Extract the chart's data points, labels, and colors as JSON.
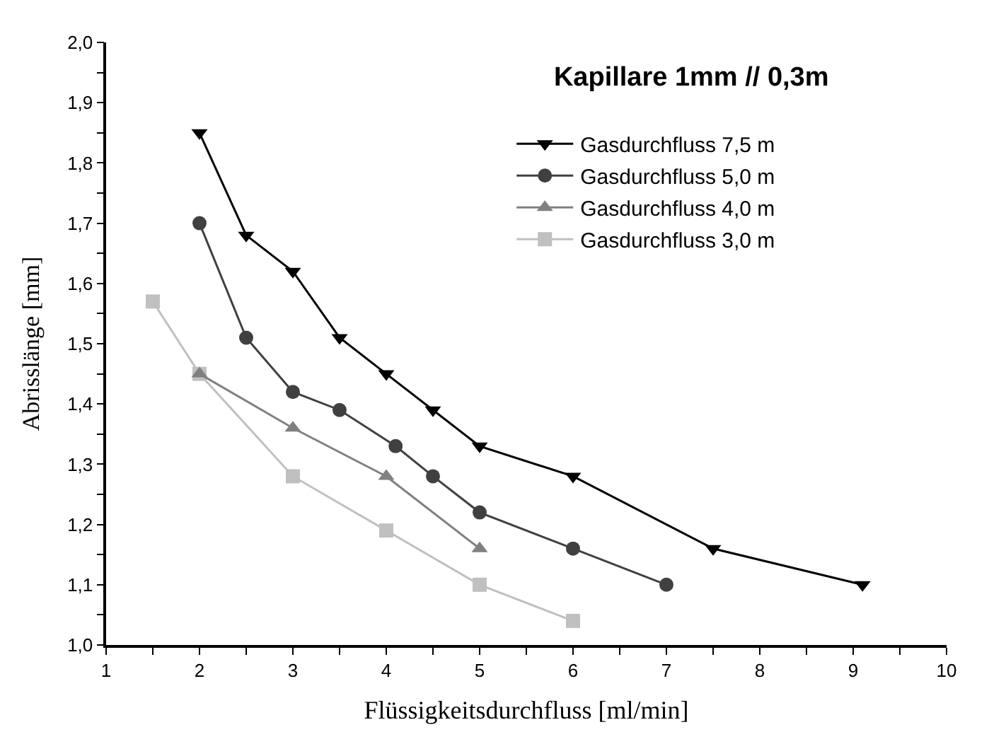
{
  "chart_data": {
    "type": "line",
    "title": "Kapillare 1mm // 0,3m",
    "xlabel": "Flüssigkeitsdurchfluss [ml/min]",
    "ylabel": "Abrisslänge [mm]",
    "xlim": [
      1,
      10
    ],
    "ylim": [
      1.0,
      2.0
    ],
    "xticks": [
      1,
      {
        "value": 1.5,
        "label": null
      },
      2,
      {
        "value": 2.5,
        "label": null
      },
      3,
      {
        "value": 3.5,
        "label": null
      },
      4,
      {
        "value": 4.5,
        "label": null
      },
      5,
      {
        "value": 5.5,
        "label": null
      },
      6,
      {
        "value": 6.5,
        "label": null
      },
      7,
      {
        "value": 7.5,
        "label": null
      },
      8,
      {
        "value": 8.5,
        "label": null
      },
      9,
      {
        "value": 9.5,
        "label": null
      },
      10
    ],
    "yticks": [
      {
        "value": 1.0,
        "label": "1,0"
      },
      {
        "value": 1.05,
        "label": null
      },
      {
        "value": 1.1,
        "label": "1,1"
      },
      {
        "value": 1.15,
        "label": null
      },
      {
        "value": 1.2,
        "label": "1,2"
      },
      {
        "value": 1.25,
        "label": null
      },
      {
        "value": 1.3,
        "label": "1,3"
      },
      {
        "value": 1.35,
        "label": null
      },
      {
        "value": 1.4,
        "label": "1,4"
      },
      {
        "value": 1.45,
        "label": null
      },
      {
        "value": 1.5,
        "label": "1,5"
      },
      {
        "value": 1.55,
        "label": null
      },
      {
        "value": 1.6,
        "label": "1,6"
      },
      {
        "value": 1.65,
        "label": null
      },
      {
        "value": 1.7,
        "label": "1,7"
      },
      {
        "value": 1.75,
        "label": null
      },
      {
        "value": 1.8,
        "label": "1,8"
      },
      {
        "value": 1.85,
        "label": null
      },
      {
        "value": 1.9,
        "label": "1,9"
      },
      {
        "value": 1.95,
        "label": null
      },
      {
        "value": 2.0,
        "label": "2,0"
      }
    ],
    "legend": "top right",
    "line_style": "solid",
    "series": [
      {
        "name": "Gasdurchfluss 7,5 m",
        "color": "#000000",
        "marker": "triangle-down",
        "x": [
          2,
          2.5,
          3,
          3.5,
          4,
          4.5,
          5,
          6,
          7.5,
          9.1
        ],
        "values": [
          1.85,
          1.68,
          1.62,
          1.51,
          1.45,
          1.39,
          1.33,
          1.28,
          1.16,
          1.1
        ]
      },
      {
        "name": "Gasdurchfluss 5,0 m",
        "color": "#404040",
        "marker": "circle",
        "x": [
          2,
          2.5,
          3,
          3.5,
          4.1,
          4.5,
          5,
          6,
          7
        ],
        "values": [
          1.7,
          1.51,
          1.42,
          1.39,
          1.33,
          1.28,
          1.22,
          1.16,
          1.1
        ]
      },
      {
        "name": "Gasdurchfluss 4,0 m",
        "color": "#808080",
        "marker": "triangle",
        "x": [
          2,
          3,
          4,
          5
        ],
        "values": [
          1.45,
          1.36,
          1.28,
          1.16
        ]
      },
      {
        "name": "Gasdurchfluss 3,0 m",
        "color": "#c0c0c0",
        "marker": "square",
        "x": [
          1.5,
          2,
          3,
          4,
          5,
          6
        ],
        "values": [
          1.57,
          1.45,
          1.28,
          1.19,
          1.1,
          1.04
        ]
      }
    ]
  }
}
